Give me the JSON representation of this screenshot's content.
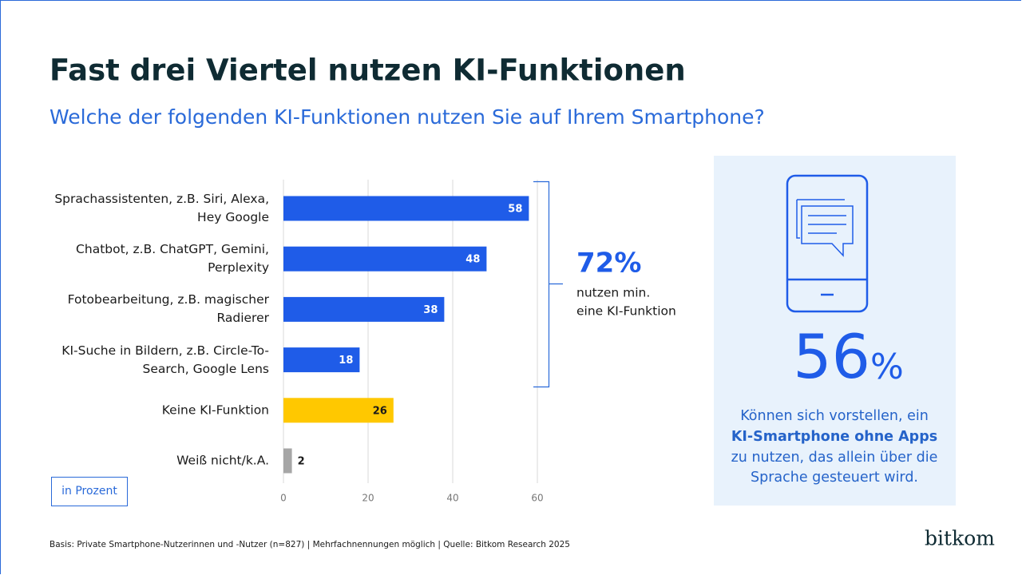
{
  "chart_data": {
    "type": "bar",
    "orientation": "horizontal",
    "title": "Fast drei Viertel nutzen KI-Funktionen",
    "subtitle": "Welche der folgenden KI-Funktionen nutzen Sie auf Ihrem Smartphone?",
    "categories": [
      "Sprachassistenten, z.B. Siri, Alexa, Hey Google",
      "Chatbot, z.B. ChatGPT, Gemini, Perplexity",
      "Fotobearbeitung, z.B. magischer Radierer",
      "KI-Suche in Bildern, z.B. Circle-To-Search, Google Lens",
      "Keine KI-Funktion",
      "Weiß nicht/k.A."
    ],
    "values": [
      58,
      48,
      38,
      18,
      26,
      2
    ],
    "colors": [
      "#1f5ce8",
      "#1f5ce8",
      "#1f5ce8",
      "#1f5ce8",
      "#ffc800",
      "#a6a6a6"
    ],
    "xlim": [
      0,
      60
    ],
    "xticks": [
      0,
      20,
      40,
      60
    ],
    "grid": true,
    "unit_note": "in Prozent",
    "bracket_value": "72%",
    "bracket_text": [
      "nutzen min.",
      "eine KI-Funktion"
    ],
    "highlight_number": "56",
    "highlight_unit": "%",
    "highlight_lines": [
      "Können sich vorstellen, ein",
      "KI-Smartphone ohne Apps",
      "zu nutzen, das allein über die",
      "Sprache gesteuert wird."
    ],
    "source": "Basis: Private Smartphone-Nutzerinnen und -Nutzer (n=827) | Mehrfachnennungen möglich | Quelle: Bitkom Research 2025",
    "logo": "bitkom"
  }
}
